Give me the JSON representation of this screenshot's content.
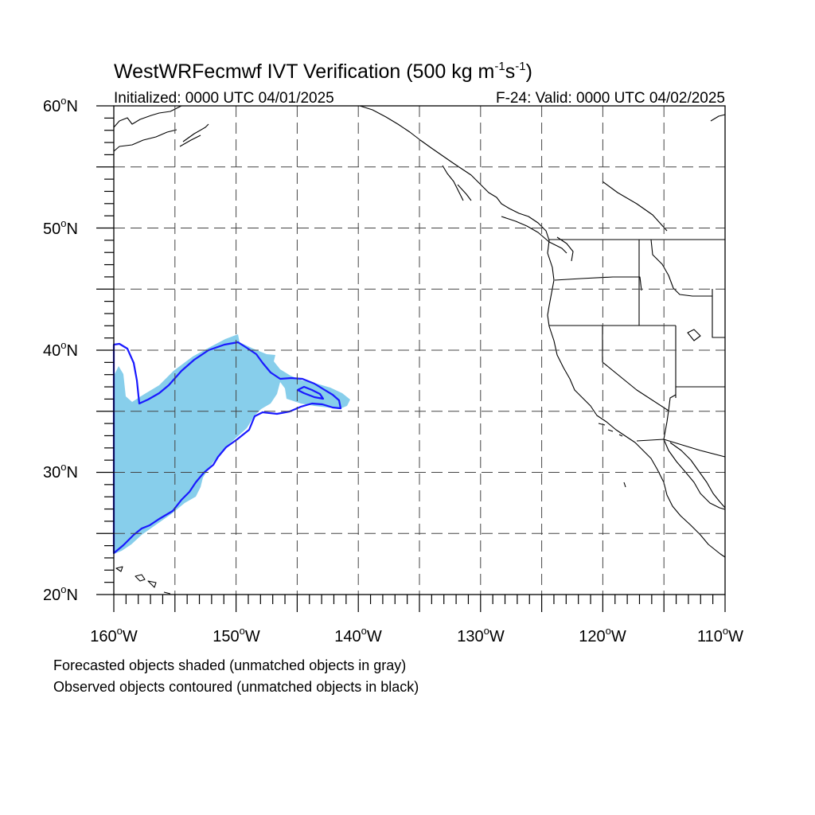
{
  "title": "WestWRFecmwf IVT Verification (500 kg m",
  "title_unit_exp1": "-1",
  "title_unit_s": "s",
  "title_unit_exp2": "-1",
  "title_close": ")",
  "initialized": "Initialized: 0000 UTC 04/01/2025",
  "valid": "F-24: Valid: 0000 UTC 04/02/2025",
  "lat_labels": [
    "20",
    "30",
    "40",
    "50",
    "60"
  ],
  "lat_suffix": "N",
  "lon_labels": [
    "160",
    "150",
    "140",
    "130",
    "120",
    "110"
  ],
  "lon_suffix": "W",
  "degree_mark": "o",
  "captions": {
    "forecast": "Forecasted objects shaded (unmatched objects in gray)",
    "observed": "Observed objects contoured (unmatched objects in black)"
  },
  "map": {
    "lon_range": [
      -160,
      -110
    ],
    "lat_range": [
      20,
      60
    ],
    "grid_lon": [
      -155,
      -150,
      -145,
      -140,
      -135,
      -130,
      -125,
      -120,
      -115
    ],
    "grid_lat": [
      25,
      30,
      35,
      40,
      45,
      50,
      55
    ],
    "forecast_object_color": "#87ceeb",
    "observed_object_color": "#1a1aff"
  }
}
